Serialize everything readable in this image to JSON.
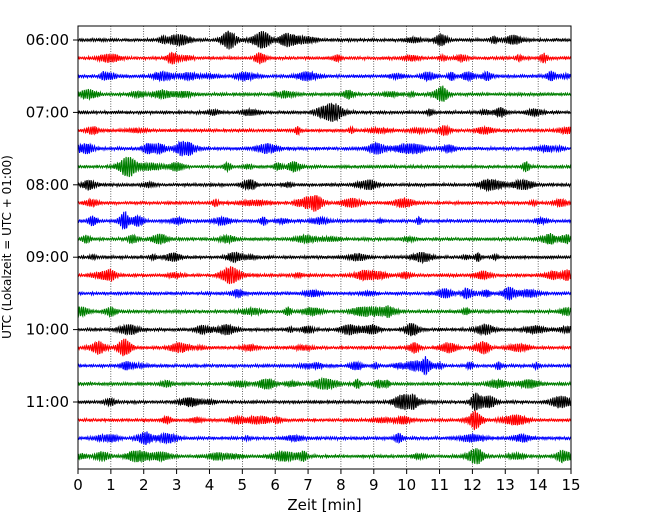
{
  "chart_data": {
    "type": "line",
    "title": "",
    "xlabel": "Zeit  [min]",
    "ylabel": "UTC (Lokalzeit = UTC + 01:00)",
    "xlim": [
      0,
      15
    ],
    "x_ticks": [
      0,
      1,
      2,
      3,
      4,
      5,
      6,
      7,
      8,
      9,
      10,
      11,
      12,
      13,
      14,
      15
    ],
    "x_tick_labels": [
      "0",
      "1",
      "2",
      "3",
      "4",
      "5",
      "6",
      "7",
      "8",
      "9",
      "10",
      "11",
      "12",
      "13",
      "14",
      "15"
    ],
    "y_tick_labels": [
      "06:00",
      "07:00",
      "08:00",
      "09:00",
      "10:00",
      "11:00"
    ],
    "x_grid": "dotted vertical lines at each minute",
    "trace_interval_min": 15,
    "trace_colors": [
      "#000000",
      "#ff0000",
      "#0000ff",
      "#007f00"
    ],
    "traces": [
      {
        "start": "06:00",
        "color": "#000000"
      },
      {
        "start": "06:15",
        "color": "#ff0000"
      },
      {
        "start": "06:30",
        "color": "#0000ff"
      },
      {
        "start": "06:45",
        "color": "#007f00"
      },
      {
        "start": "07:00",
        "color": "#000000"
      },
      {
        "start": "07:15",
        "color": "#ff0000"
      },
      {
        "start": "07:30",
        "color": "#0000ff"
      },
      {
        "start": "07:45",
        "color": "#007f00"
      },
      {
        "start": "08:00",
        "color": "#000000"
      },
      {
        "start": "08:15",
        "color": "#ff0000"
      },
      {
        "start": "08:30",
        "color": "#0000ff"
      },
      {
        "start": "08:45",
        "color": "#007f00"
      },
      {
        "start": "09:00",
        "color": "#000000"
      },
      {
        "start": "09:15",
        "color": "#ff0000"
      },
      {
        "start": "09:30",
        "color": "#0000ff"
      },
      {
        "start": "09:45",
        "color": "#007f00"
      },
      {
        "start": "10:00",
        "color": "#000000"
      },
      {
        "start": "10:15",
        "color": "#ff0000"
      },
      {
        "start": "10:30",
        "color": "#0000ff"
      },
      {
        "start": "10:45",
        "color": "#007f00"
      },
      {
        "start": "11:00",
        "color": "#000000"
      },
      {
        "start": "11:15",
        "color": "#ff0000"
      },
      {
        "start": "11:30",
        "color": "#0000ff"
      },
      {
        "start": "11:45",
        "color": "#007f00"
      }
    ]
  }
}
